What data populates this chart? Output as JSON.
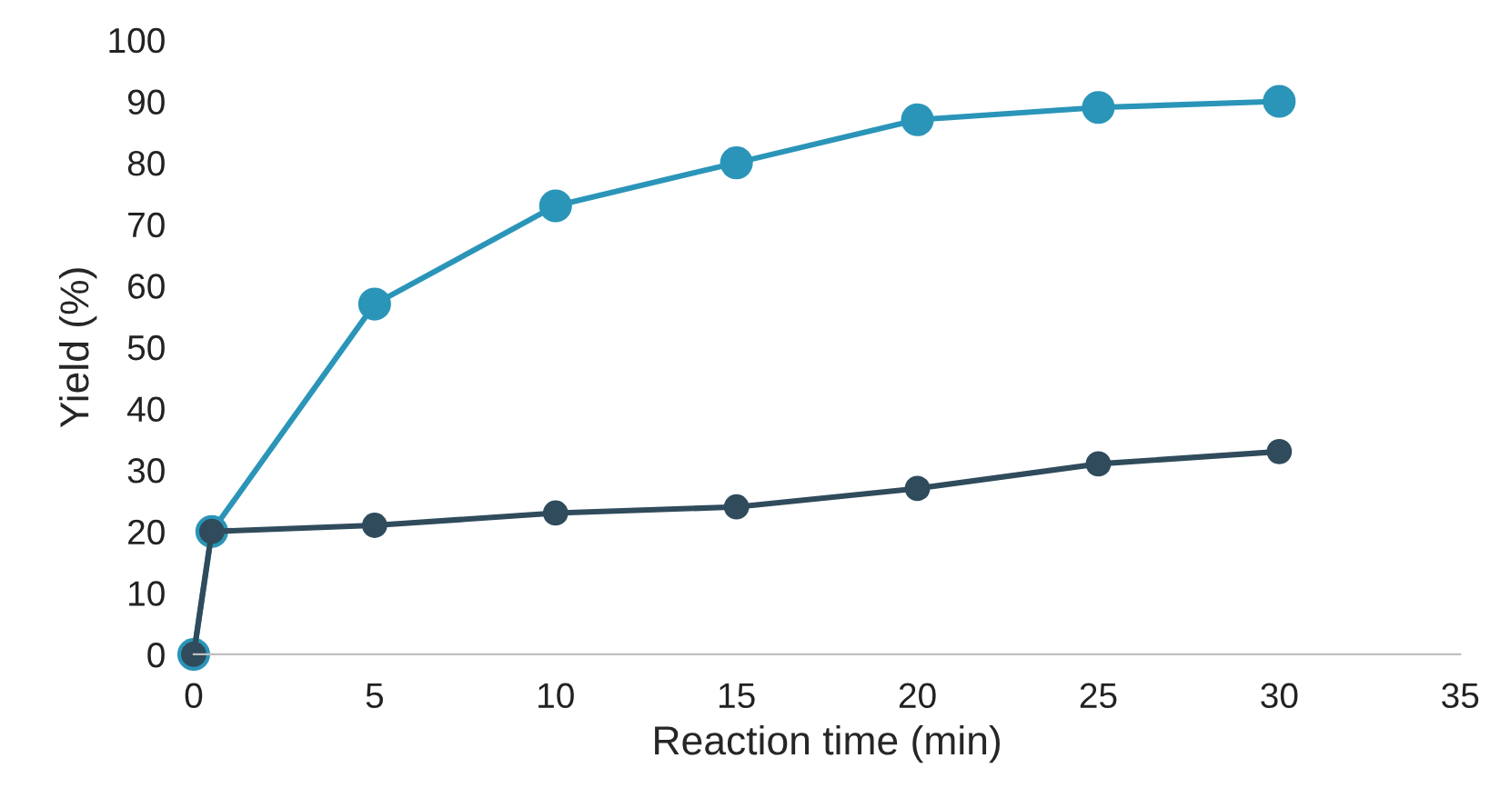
{
  "chart_data": {
    "type": "line",
    "xlabel": "Reaction time (min)",
    "ylabel": "Yield (%)",
    "series": [
      {
        "color": "#2a95b8",
        "x": [
          0,
          0.5,
          5,
          10,
          15,
          20,
          25,
          30
        ],
        "values": [
          0,
          20,
          57,
          73,
          80,
          87,
          89,
          90
        ]
      },
      {
        "color": "#2f4b5c",
        "x": [
          0,
          0.5,
          5,
          10,
          15,
          20,
          25,
          30
        ],
        "values": [
          0,
          20,
          21,
          23,
          24,
          27,
          31,
          33
        ]
      }
    ],
    "xlim": [
      0,
      35
    ],
    "xticks": [
      0,
      5,
      10,
      15,
      20,
      25,
      30,
      35
    ],
    "ylim": [
      0,
      100
    ],
    "yticks": [
      0,
      10,
      20,
      30,
      40,
      50,
      60,
      70,
      80,
      90,
      100
    ],
    "marker": "circle",
    "line_style": "solid",
    "grid": false,
    "legend": false
  }
}
